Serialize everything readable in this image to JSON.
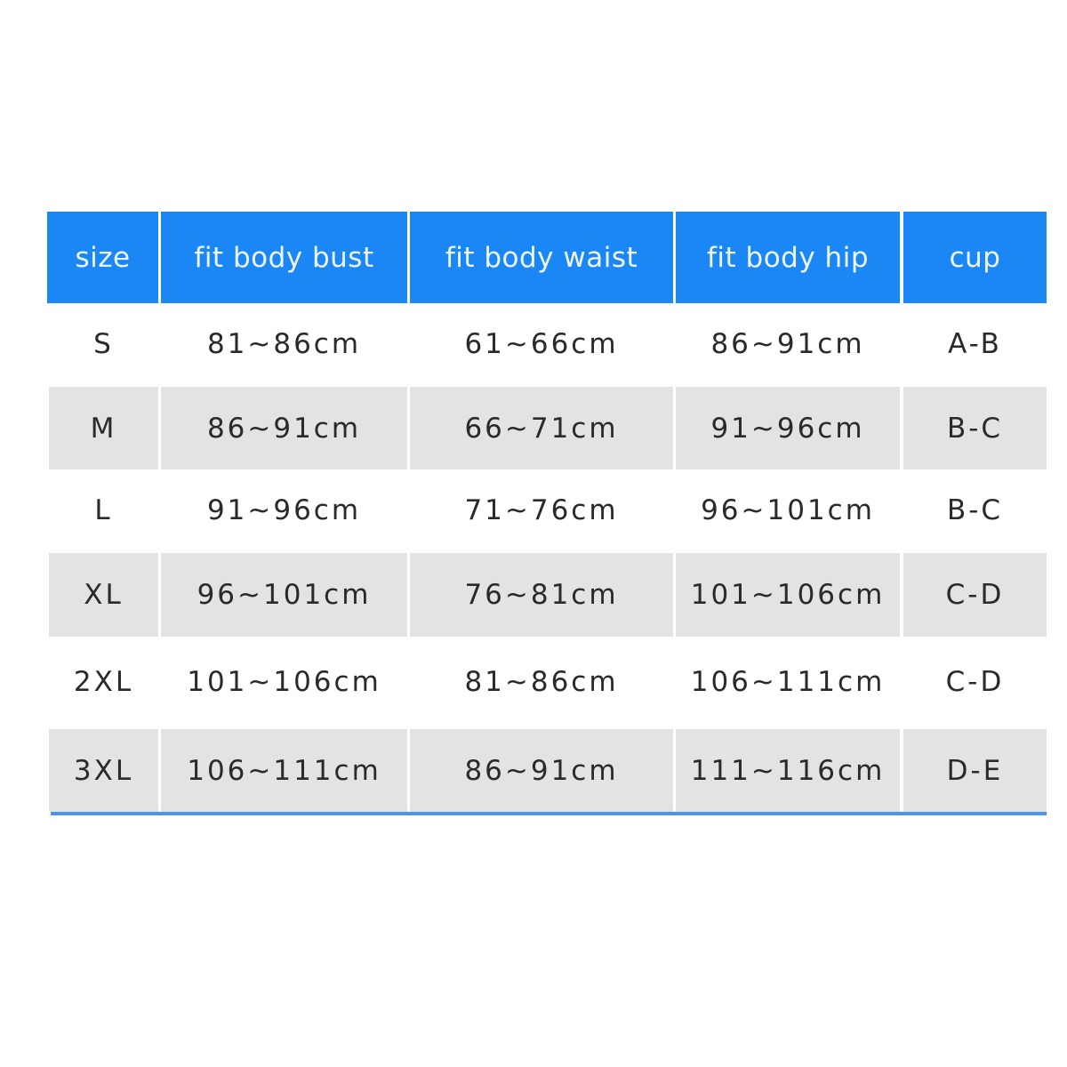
{
  "colors": {
    "header_bg": "#1a87f5",
    "stripe_bg": "#e3e3e3",
    "rule": "#4a94ee"
  },
  "table": {
    "headers": [
      "size",
      "fit body bust",
      "fit body waist",
      "fit body hip",
      "cup"
    ],
    "rows": [
      [
        "S",
        "81~86cm",
        "61~66cm",
        "86~91cm",
        "A-B"
      ],
      [
        "M",
        "86~91cm",
        "66~71cm",
        "91~96cm",
        "B-C"
      ],
      [
        "L",
        "91~96cm",
        "71~76cm",
        "96~101cm",
        "B-C"
      ],
      [
        "XL",
        "96~101cm",
        "76~81cm",
        "101~106cm",
        "C-D"
      ],
      [
        "2XL",
        "101~106cm",
        "81~86cm",
        "106~111cm",
        "C-D"
      ],
      [
        "3XL",
        "106~111cm",
        "86~91cm",
        "111~116cm",
        "D-E"
      ]
    ]
  }
}
